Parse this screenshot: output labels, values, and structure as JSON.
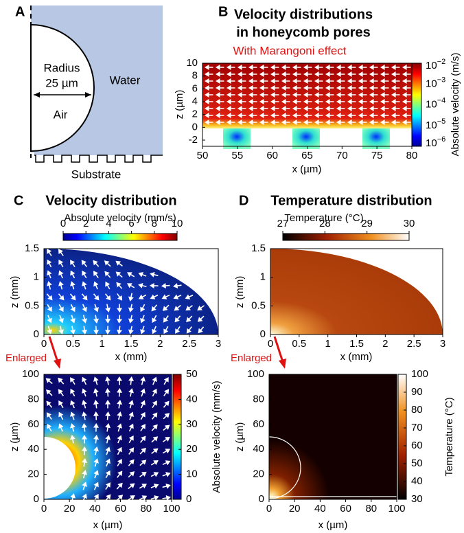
{
  "panels": {
    "A": {
      "label": "A",
      "radius_label": "Radius",
      "radius_value": "25 µm",
      "water": "Water",
      "air": "Air",
      "substrate": "Substrate"
    },
    "B": {
      "label": "B",
      "title": [
        "Velocity distributions",
        "in honeycomb pores"
      ],
      "subtitle": "With Marangoni effect",
      "x_label": "x (µm)",
      "y_label": "z (µm)",
      "xticks": [
        50,
        55,
        60,
        65,
        70,
        75,
        80
      ],
      "yticks": [
        10,
        8,
        6,
        4,
        2,
        0,
        -2
      ],
      "colorbar_label": "Absolute velocity (m/s)",
      "colorbar_ticks": [
        {
          "base": "10",
          "exp": "−2"
        },
        {
          "base": "10",
          "exp": "−3"
        },
        {
          "base": "10",
          "exp": "−4"
        },
        {
          "base": "10",
          "exp": "−5"
        },
        {
          "base": "10",
          "exp": "−6"
        }
      ]
    },
    "C": {
      "label": "C",
      "title": "Velocity distribution",
      "colorbar_label": "Absolute velocity (mm/s)",
      "colorbar_ticks": [
        0,
        2,
        4,
        6,
        8,
        10
      ],
      "x_label": "x (mm)",
      "y_label": "z (mm)",
      "xticks": [
        0,
        0.5,
        1,
        1.5,
        2,
        2.5,
        3
      ],
      "yticks": [
        0,
        0.5,
        1,
        1.5
      ],
      "enlarged": "Enlarged",
      "inset": {
        "x_label": "x (µm)",
        "y_label": "z (µm)",
        "xticks": [
          0,
          20,
          40,
          60,
          80,
          100
        ],
        "yticks": [
          0,
          20,
          40,
          60,
          80,
          100
        ],
        "colorbar_label": "Absolute velocity (mm/s)",
        "colorbar_ticks": [
          0,
          10,
          20,
          30,
          40,
          50
        ]
      }
    },
    "D": {
      "label": "D",
      "title": "Temperature distribution",
      "colorbar_label": "Temperature (°C)",
      "colorbar_ticks": [
        27,
        28,
        29,
        30
      ],
      "x_label": "x (mm)",
      "y_label": "z (mm)",
      "xticks": [
        0,
        0.5,
        1,
        1.5,
        2,
        2.5,
        3
      ],
      "yticks": [
        0,
        0.5,
        1,
        1.5
      ],
      "enlarged": "Enlarged",
      "inset": {
        "x_label": "x (µm)",
        "y_label": "z (µm)",
        "xticks": [
          0,
          20,
          40,
          60,
          80,
          100
        ],
        "yticks": [
          0,
          20,
          40,
          60,
          80,
          100
        ],
        "colorbar_label": "Temperature (°C)",
        "colorbar_ticks": [
          30,
          40,
          50,
          60,
          70,
          80,
          90,
          100
        ]
      }
    }
  }
}
